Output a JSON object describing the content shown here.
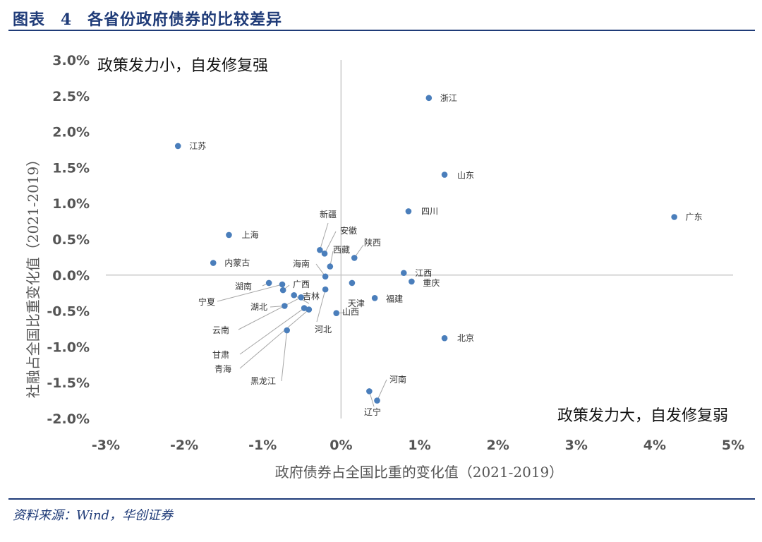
{
  "header": {
    "figure_label": "图表",
    "figure_number": "4",
    "title": "各省份政府债券的比较差异"
  },
  "footer": {
    "source": "资料来源：Wind，华创证券"
  },
  "chart_data": {
    "type": "scatter",
    "title": "各省份政府债券的比较差异",
    "xlabel": "政府债券占全国比重的变化值（2021-2019）",
    "ylabel": "社融占全国比重变化值（2021-2019）",
    "xlim": [
      -3,
      5
    ],
    "ylim": [
      -2,
      3
    ],
    "x_ticks": [
      "-3%",
      "-2%",
      "-1%",
      "0%",
      "1%",
      "2%",
      "3%",
      "4%",
      "5%"
    ],
    "y_ticks": [
      "3.0%",
      "2.5%",
      "2.0%",
      "1.5%",
      "1.0%",
      "0.5%",
      "0.0%",
      "-0.5%",
      "-1.0%",
      "-1.5%",
      "-2.0%"
    ],
    "annotations": {
      "top_left": "政策发力小，自发修复强",
      "bottom_right": "政策发力大，自发修复弱"
    },
    "series": [
      {
        "name": "省份",
        "color": "#4a7ebb",
        "points": [
          {
            "label": "浙江",
            "x": 1.12,
            "y": 2.47
          },
          {
            "label": "江苏",
            "x": -2.08,
            "y": 1.8
          },
          {
            "label": "山东",
            "x": 1.32,
            "y": 1.4
          },
          {
            "label": "广东",
            "x": 4.25,
            "y": 0.81
          },
          {
            "label": "四川",
            "x": 0.86,
            "y": 0.89
          },
          {
            "label": "上海",
            "x": -1.43,
            "y": 0.56
          },
          {
            "label": "内蒙古",
            "x": -1.63,
            "y": 0.17
          },
          {
            "label": "新疆",
            "x": -0.27,
            "y": 0.35
          },
          {
            "label": "安徽",
            "x": -0.21,
            "y": 0.3
          },
          {
            "label": "西藏",
            "x": -0.14,
            "y": 0.12
          },
          {
            "label": "陕西",
            "x": 0.17,
            "y": 0.24
          },
          {
            "label": "海南",
            "x": -0.2,
            "y": -0.02
          },
          {
            "label": "江西",
            "x": 0.8,
            "y": 0.03
          },
          {
            "label": "重庆",
            "x": 0.9,
            "y": -0.09
          },
          {
            "label": "天津",
            "x": 0.14,
            "y": -0.11
          },
          {
            "label": "福建",
            "x": 0.43,
            "y": -0.32
          },
          {
            "label": "湖南",
            "x": -0.92,
            "y": -0.11
          },
          {
            "label": "宁夏",
            "x": -0.75,
            "y": -0.13
          },
          {
            "label": "广西",
            "x": -0.74,
            "y": -0.21
          },
          {
            "label": "吉林",
            "x": -0.6,
            "y": -0.28
          },
          {
            "label": "湖北",
            "x": -0.72,
            "y": -0.43
          },
          {
            "label": "云南",
            "x": -0.51,
            "y": -0.31
          },
          {
            "label": "甘肃",
            "x": -0.47,
            "y": -0.46
          },
          {
            "label": "青海",
            "x": -0.41,
            "y": -0.48
          },
          {
            "label": "河北",
            "x": -0.2,
            "y": -0.2
          },
          {
            "label": "山西",
            "x": -0.06,
            "y": -0.53
          },
          {
            "label": "黑龙江",
            "x": -0.69,
            "y": -0.77
          },
          {
            "label": "北京",
            "x": 1.32,
            "y": -0.88
          },
          {
            "label": "河南",
            "x": 0.46,
            "y": -1.75
          },
          {
            "label": "辽宁",
            "x": 0.36,
            "y": -1.62
          }
        ]
      }
    ]
  }
}
